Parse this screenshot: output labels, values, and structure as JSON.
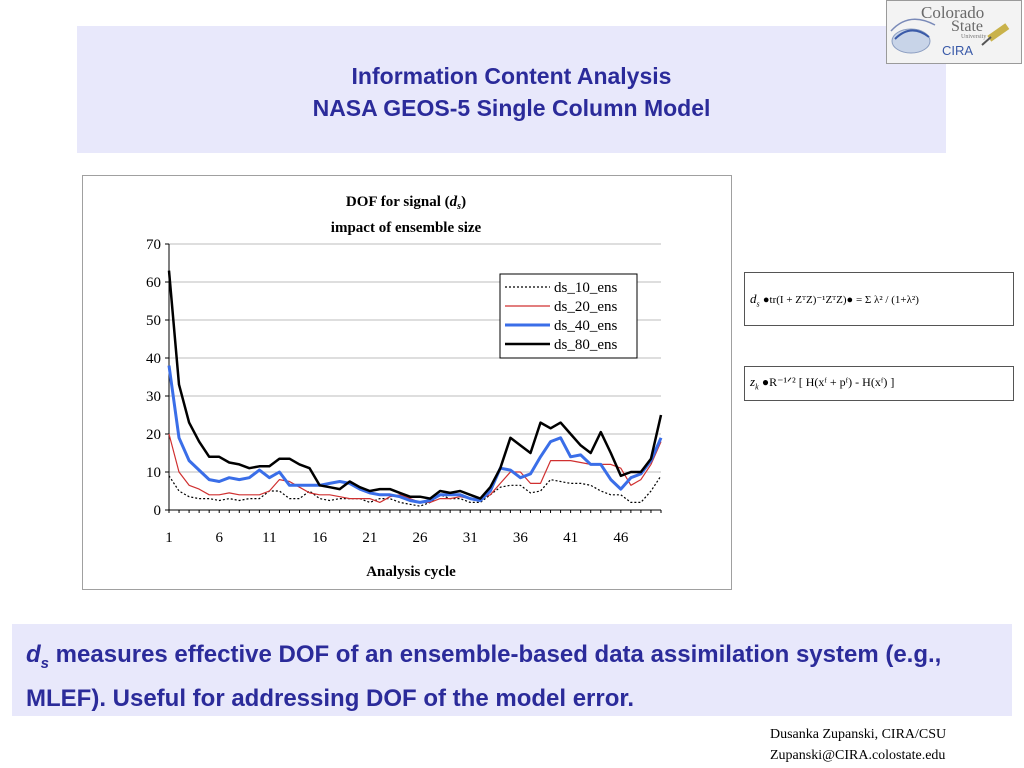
{
  "slide": {
    "title_line1": "Information Content Analysis",
    "title_line2": "NASA GEOS-5 Single Column Model",
    "title_color": "#2b2b9a",
    "panel_color": "#e8e8fb"
  },
  "logo": {
    "line1": "Colorado",
    "line2": "State",
    "line3": "University",
    "line4": "CIRA"
  },
  "formulas": {
    "dof": {
      "lhs_symbol": "d",
      "lhs_sub": "s",
      "text": "●tr(I + ZᵀZ)⁻¹ZᵀZ)● = Σ λ² / (1+λ²)"
    },
    "z": {
      "lhs_symbol": "z",
      "lhs_sub": "k",
      "text": "●R⁻¹ᐟ² [ H(xᶠ + pᶠ) - H(xᶠ) ]"
    }
  },
  "note": {
    "symbol": "d",
    "symbol_sub": "s",
    "text": " measures effective DOF of an ensemble-based data assimilation system (e.g., MLEF). Useful for addressing DOF of the model error."
  },
  "credit": {
    "line1": "Dusanka Zupanski,  CIRA/CSU",
    "line2": "Zupanski@CIRA.colostate.edu"
  },
  "chart_data": {
    "type": "line",
    "title_prefix": "DOF for signal (",
    "title_symbol": "d",
    "title_sub": "s",
    "title_suffix": ")",
    "subtitle": "impact of ensemble size",
    "xlabel": "Analysis cycle",
    "ylabel": "",
    "ylim": [
      0,
      70
    ],
    "yticks": [
      0,
      10,
      20,
      30,
      40,
      50,
      60,
      70
    ],
    "xticks": [
      1,
      6,
      11,
      16,
      21,
      26,
      31,
      36,
      41,
      46
    ],
    "xlim": [
      1,
      50
    ],
    "grid": true,
    "legend_position": "top-right",
    "x": [
      1,
      2,
      3,
      4,
      5,
      6,
      7,
      8,
      9,
      10,
      11,
      12,
      13,
      14,
      15,
      16,
      17,
      18,
      19,
      20,
      21,
      22,
      23,
      24,
      25,
      26,
      27,
      28,
      29,
      30,
      31,
      32,
      33,
      34,
      35,
      36,
      37,
      38,
      39,
      40,
      41,
      42,
      43,
      44,
      45,
      46,
      47,
      48,
      49,
      50
    ],
    "series": [
      {
        "name": "ds_10_ens",
        "color": "#000000",
        "style": "dotted",
        "width": 1.2,
        "values": [
          9,
          5,
          3.5,
          3,
          3,
          2.5,
          3,
          2.5,
          3,
          3,
          5,
          5,
          3,
          3,
          5,
          3,
          2.5,
          3,
          3,
          3,
          2,
          3,
          3,
          2,
          1.5,
          1,
          2,
          4,
          3,
          3,
          2,
          2,
          4,
          6,
          6.5,
          6.5,
          4.5,
          5,
          8,
          7.5,
          7,
          7,
          6.5,
          5,
          4,
          4,
          2,
          2,
          5,
          9
        ]
      },
      {
        "name": "ds_20_ens",
        "color": "#d03030",
        "style": "solid",
        "width": 1.2,
        "values": [
          20,
          10,
          6.5,
          5.5,
          4,
          4,
          4.5,
          4,
          4,
          4,
          5,
          8,
          7.5,
          6,
          4.5,
          4,
          4,
          3.5,
          3,
          3,
          3,
          2,
          3.5,
          4,
          3,
          2,
          2,
          3,
          3,
          3.5,
          3,
          3,
          4,
          7,
          10,
          10,
          7,
          7,
          13,
          13,
          13,
          12.5,
          12,
          12,
          12,
          11,
          6.5,
          8,
          12,
          18
        ]
      },
      {
        "name": "ds_40_ens",
        "color": "#3a6ee8",
        "style": "solid",
        "width": 3,
        "values": [
          38,
          19,
          13,
          10.5,
          8,
          7.5,
          8.5,
          8,
          8.5,
          10.5,
          8.5,
          10,
          6.5,
          6.5,
          6.5,
          6.5,
          7,
          7.5,
          7,
          5.5,
          4.5,
          4,
          4,
          3.5,
          2.5,
          2,
          2.5,
          4,
          4,
          4,
          3,
          2.5,
          5,
          11,
          10.5,
          8.5,
          9.5,
          14,
          18,
          19,
          14,
          14.5,
          12,
          12,
          8,
          5.5,
          8.5,
          9.5,
          13,
          19
        ]
      },
      {
        "name": "ds_80_ens",
        "color": "#000000",
        "style": "solid",
        "width": 2.5,
        "values": [
          63,
          33,
          23,
          18,
          14,
          14,
          12.5,
          12,
          11,
          11.5,
          11.5,
          13.5,
          13.5,
          12,
          11,
          6.5,
          6,
          5.5,
          7.5,
          6,
          5,
          5.5,
          5.5,
          4.5,
          3.5,
          3.5,
          3,
          5,
          4.5,
          5,
          4,
          3,
          6,
          11,
          19,
          17,
          15,
          23,
          21.5,
          23,
          20,
          17,
          15,
          20.5,
          15,
          9,
          10,
          10,
          13.5,
          25
        ]
      }
    ]
  }
}
